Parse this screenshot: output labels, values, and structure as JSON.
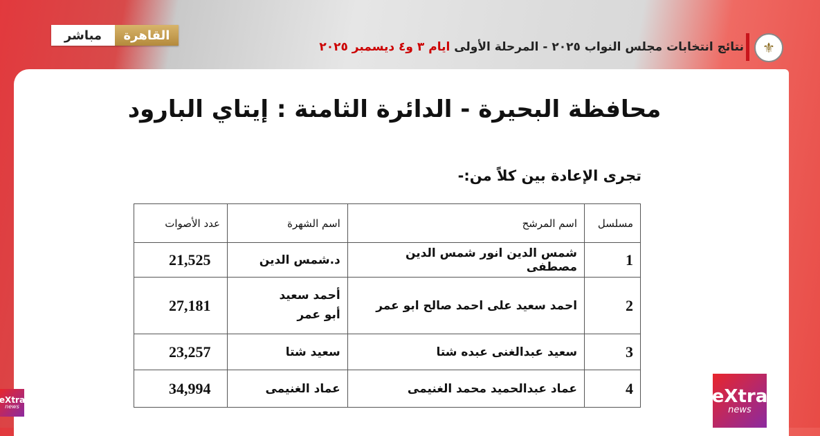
{
  "broadcast": {
    "live_label": "مباشر",
    "city_label": "القاهرة",
    "ticker_main": "نتائج انتخابات مجلس النواب ٢٠٢٥ - المرحلة الأولى",
    "ticker_dates": "ايام ٣ و٤ ديسمبر ٢٠٢٥",
    "channel_logo": "eXtra news"
  },
  "document": {
    "title": "محافظة البحيرة - الدائرة الثامنة : إيتاي البارود",
    "subtitle": "تجرى الإعادة بين كلاً من:-",
    "table": {
      "headers": [
        "مسلسل",
        "اسم المرشح",
        "اسم الشهرة",
        "عدد الأصوات"
      ],
      "rows": [
        {
          "serial": "1",
          "name": "شمس الدين انور شمس الدين مصطفى",
          "known_as": "د.شمس الدين",
          "votes": "21,525"
        },
        {
          "serial": "2",
          "name": "احمد سعيد على احمد صالح ابو عمر",
          "known_as": "أحمد سعيد أبو عمر",
          "votes": "27,181"
        },
        {
          "serial": "3",
          "name": "سعيد عبدالغنى عبده شتا",
          "known_as": "سعيد شتا",
          "votes": "23,257"
        },
        {
          "serial": "4",
          "name": "عماد عبدالحميد محمد الغنيمى",
          "known_as": "عماد الغنيمى",
          "votes": "34,994"
        }
      ]
    }
  }
}
